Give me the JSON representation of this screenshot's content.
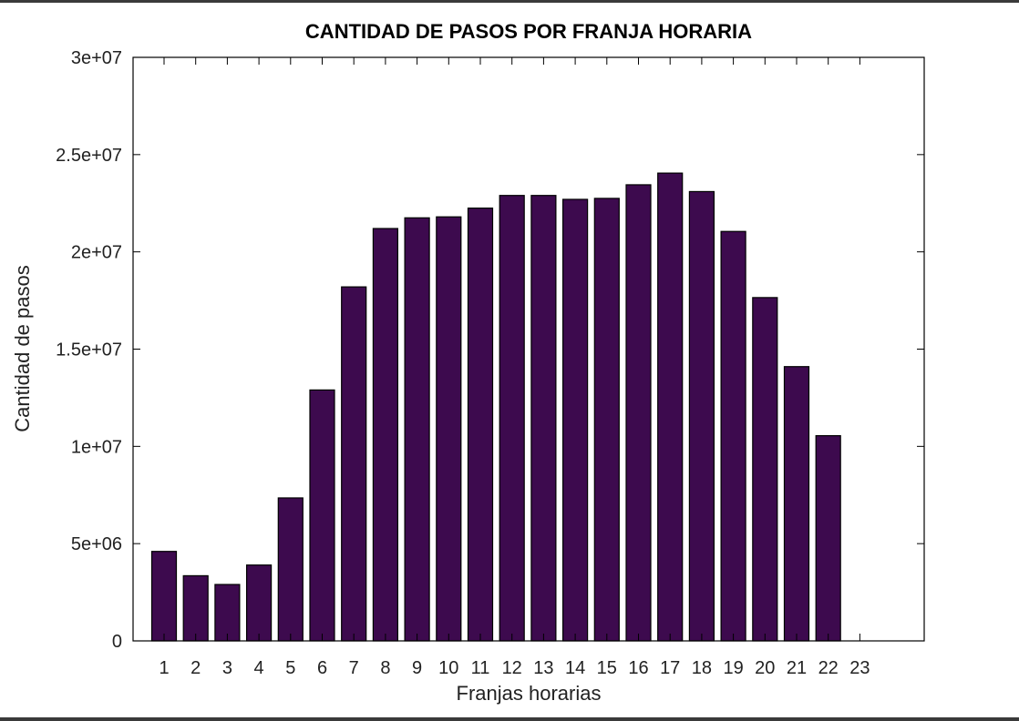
{
  "chart_data": {
    "type": "bar",
    "title": "CANTIDAD DE PASOS POR FRANJA HORARIA",
    "xlabel": "Franjas horarias",
    "ylabel": "Cantidad de pasos",
    "categories": [
      "1",
      "2",
      "3",
      "4",
      "5",
      "6",
      "7",
      "8",
      "9",
      "10",
      "11",
      "12",
      "13",
      "14",
      "15",
      "16",
      "17",
      "18",
      "19",
      "20",
      "21",
      "22",
      "23"
    ],
    "values": [
      4600000,
      3350000,
      2900000,
      3900000,
      7350000,
      12900000,
      18200000,
      21200000,
      21750000,
      21800000,
      22250000,
      22900000,
      22900000,
      22700000,
      22750000,
      23450000,
      24050000,
      23100000,
      21050000,
      17650000,
      14100000,
      10550000,
      0
    ],
    "ylim": [
      0,
      30000000
    ],
    "yticks": [
      0,
      5000000,
      10000000,
      15000000,
      20000000,
      25000000,
      30000000
    ],
    "ytick_labels": [
      "0",
      "5e+06",
      "1e+07",
      "1.5e+07",
      "2e+07",
      "2.5e+07",
      "3e+07"
    ],
    "bar_color": "#3d0a4e",
    "grid": false,
    "legend": "none"
  }
}
